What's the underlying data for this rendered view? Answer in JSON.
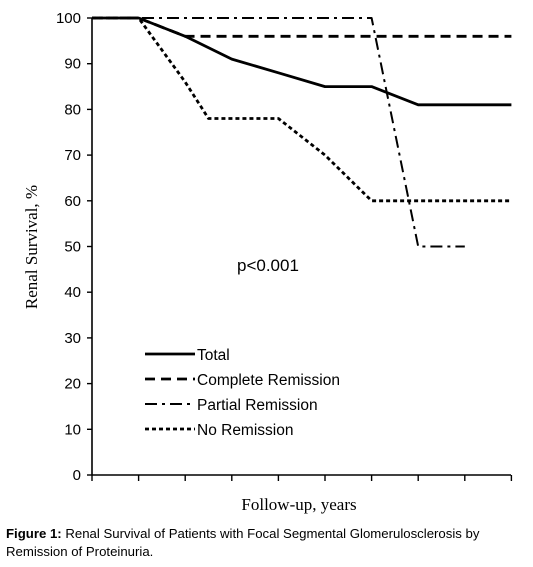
{
  "chart_data": {
    "type": "line",
    "ylabel": "Renal Survival, %",
    "xlabel": "Follow-up, years",
    "ylim": [
      0,
      100
    ],
    "yticks": [
      0,
      10,
      20,
      30,
      40,
      50,
      60,
      70,
      80,
      90,
      100
    ],
    "x_tick_count": 10,
    "annotation": "p<0.001",
    "grid": false,
    "legend_position": "bottom-left",
    "series": [
      {
        "name": "Total",
        "style": "solid",
        "x": [
          0,
          1,
          2,
          3,
          4,
          5,
          6,
          7,
          8,
          9
        ],
        "values": [
          100,
          100,
          96,
          91,
          88,
          85,
          85,
          81,
          81,
          81
        ]
      },
      {
        "name": "Complete Remission",
        "style": "dashed",
        "x": [
          0,
          1,
          2,
          9
        ],
        "values": [
          100,
          100,
          96,
          96
        ]
      },
      {
        "name": "Partial Remission",
        "style": "dash-dot",
        "x": [
          0,
          6,
          7,
          8
        ],
        "values": [
          100,
          100,
          50,
          50
        ]
      },
      {
        "name": "No Remission",
        "style": "dotted",
        "x": [
          0,
          1,
          2,
          2.5,
          3,
          4,
          5,
          6,
          7,
          9
        ],
        "values": [
          100,
          100,
          86,
          78,
          78,
          78,
          70,
          60,
          60,
          60
        ]
      }
    ]
  },
  "caption": {
    "label": "Figure 1:",
    "text": "Renal Survival of Patients with Focal Segmental Glomerulosclerosis by Remission of Proteinuria."
  }
}
